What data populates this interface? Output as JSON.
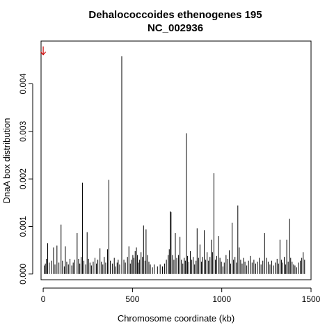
{
  "chart_data": {
    "type": "bar",
    "title": "Dehalococcoides ethenogenes 195",
    "subtitle": "NC_002936",
    "xlabel": "Chromosome coordinate (kb)",
    "ylabel": "DnaA box distribution",
    "xlim": [
      -12,
      1500
    ],
    "ylim": [
      -0.00012,
      0.0049
    ],
    "xticks": [
      0,
      500,
      1000,
      1500
    ],
    "xtick_labels": [
      "0",
      "500",
      "1000",
      "1500"
    ],
    "yticks": [
      0,
      0.001,
      0.002,
      0.003,
      0.004
    ],
    "ytick_labels": [
      "0.000",
      "0.001",
      "0.002",
      "0.003",
      "0.004"
    ],
    "marker": {
      "kind": "arrow",
      "x": 0,
      "y": 0.0047,
      "color": "#cc0000"
    },
    "bar_color": "#000000",
    "bars": [
      [
        6,
        0.00018
      ],
      [
        12,
        0.00022
      ],
      [
        18,
        0.00032
      ],
      [
        25,
        0.00065
      ],
      [
        34,
        0.00024
      ],
      [
        48,
        0.00028
      ],
      [
        58,
        0.00056
      ],
      [
        66,
        0.0002
      ],
      [
        77,
        0.0006
      ],
      [
        88,
        0.00024
      ],
      [
        100,
        0.00104
      ],
      [
        108,
        0.00028
      ],
      [
        118,
        0.00016
      ],
      [
        124,
        0.00058
      ],
      [
        132,
        0.00026
      ],
      [
        141,
        0.0002
      ],
      [
        150,
        0.00032
      ],
      [
        160,
        0.00018
      ],
      [
        168,
        0.00024
      ],
      [
        176,
        0.0003
      ],
      [
        190,
        0.00086
      ],
      [
        198,
        0.00032
      ],
      [
        205,
        0.00022
      ],
      [
        213,
        0.00036
      ],
      [
        220,
        0.00192
      ],
      [
        228,
        0.00028
      ],
      [
        238,
        0.0002
      ],
      [
        246,
        0.00088
      ],
      [
        254,
        0.00032
      ],
      [
        262,
        0.00024
      ],
      [
        270,
        0.00018
      ],
      [
        280,
        0.00026
      ],
      [
        290,
        0.00034
      ],
      [
        298,
        0.00022
      ],
      [
        306,
        0.0003
      ],
      [
        318,
        0.00054
      ],
      [
        326,
        0.00026
      ],
      [
        334,
        0.0002
      ],
      [
        342,
        0.00036
      ],
      [
        350,
        0.00024
      ],
      [
        360,
        0.00052
      ],
      [
        368,
        0.00198
      ],
      [
        376,
        0.00028
      ],
      [
        388,
        0.00022
      ],
      [
        398,
        0.00034
      ],
      [
        406,
        0.00016
      ],
      [
        414,
        0.00024
      ],
      [
        420,
        0.0003
      ],
      [
        428,
        0.0002
      ],
      [
        440,
        0.00458
      ],
      [
        452,
        0.0003
      ],
      [
        460,
        0.00024
      ],
      [
        472,
        0.00036
      ],
      [
        480,
        0.00058
      ],
      [
        488,
        0.00022
      ],
      [
        494,
        0.0003
      ],
      [
        502,
        0.0004
      ],
      [
        508,
        0.00034
      ],
      [
        515,
        0.00048
      ],
      [
        522,
        0.00056
      ],
      [
        528,
        0.0004
      ],
      [
        534,
        0.00024
      ],
      [
        540,
        0.0003
      ],
      [
        548,
        0.00046
      ],
      [
        556,
        0.00036
      ],
      [
        562,
        0.00102
      ],
      [
        570,
        0.00028
      ],
      [
        576,
        0.00094
      ],
      [
        584,
        0.0004
      ],
      [
        592,
        0.00026
      ],
      [
        600,
        0.0002
      ],
      [
        612,
        0.00014
      ],
      [
        622,
        0.0002
      ],
      [
        640,
        0.00016
      ],
      [
        655,
        0.0002
      ],
      [
        668,
        0.00016
      ],
      [
        680,
        0.00022
      ],
      [
        690,
        0.0003
      ],
      [
        700,
        0.0004
      ],
      [
        706,
        0.00052
      ],
      [
        712,
        0.00132
      ],
      [
        716,
        0.0013
      ],
      [
        724,
        0.0004
      ],
      [
        732,
        0.0003
      ],
      [
        740,
        0.00086
      ],
      [
        748,
        0.00034
      ],
      [
        758,
        0.0004
      ],
      [
        766,
        0.00078
      ],
      [
        774,
        0.0003
      ],
      [
        782,
        0.00022
      ],
      [
        790,
        0.00034
      ],
      [
        796,
        0.00028
      ],
      [
        802,
        0.00296
      ],
      [
        808,
        0.00038
      ],
      [
        816,
        0.00026
      ],
      [
        824,
        0.00048
      ],
      [
        832,
        0.0003
      ],
      [
        840,
        0.00036
      ],
      [
        848,
        0.0002
      ],
      [
        856,
        0.00028
      ],
      [
        862,
        0.00096
      ],
      [
        870,
        0.00034
      ],
      [
        878,
        0.00062
      ],
      [
        886,
        0.00026
      ],
      [
        894,
        0.00036
      ],
      [
        902,
        0.00092
      ],
      [
        910,
        0.0003
      ],
      [
        918,
        0.00046
      ],
      [
        926,
        0.00028
      ],
      [
        934,
        0.00036
      ],
      [
        942,
        0.00072
      ],
      [
        948,
        0.00046
      ],
      [
        956,
        0.00212
      ],
      [
        964,
        0.0003
      ],
      [
        972,
        0.00038
      ],
      [
        982,
        0.0008
      ],
      [
        990,
        0.00034
      ],
      [
        998,
        0.00026
      ],
      [
        1006,
        0.00016
      ],
      [
        1014,
        0.00024
      ],
      [
        1024,
        0.0004
      ],
      [
        1034,
        0.00032
      ],
      [
        1042,
        0.0005
      ],
      [
        1050,
        0.00022
      ],
      [
        1058,
        0.00108
      ],
      [
        1066,
        0.0003
      ],
      [
        1074,
        0.00036
      ],
      [
        1082,
        0.00024
      ],
      [
        1090,
        0.00144
      ],
      [
        1098,
        0.00056
      ],
      [
        1106,
        0.0003
      ],
      [
        1114,
        0.00022
      ],
      [
        1122,
        0.00034
      ],
      [
        1130,
        0.00026
      ],
      [
        1140,
        0.00018
      ],
      [
        1150,
        0.00028
      ],
      [
        1160,
        0.00038
      ],
      [
        1170,
        0.00024
      ],
      [
        1180,
        0.0003
      ],
      [
        1190,
        0.00022
      ],
      [
        1200,
        0.00026
      ],
      [
        1210,
        0.00034
      ],
      [
        1220,
        0.0002
      ],
      [
        1230,
        0.00028
      ],
      [
        1240,
        0.00086
      ],
      [
        1250,
        0.00034
      ],
      [
        1260,
        0.00026
      ],
      [
        1270,
        0.0002
      ],
      [
        1280,
        0.00028
      ],
      [
        1290,
        0.00018
      ],
      [
        1300,
        0.00024
      ],
      [
        1310,
        0.00032
      ],
      [
        1318,
        0.00022
      ],
      [
        1326,
        0.00072
      ],
      [
        1334,
        0.0003
      ],
      [
        1342,
        0.00024
      ],
      [
        1350,
        0.00036
      ],
      [
        1358,
        0.0002
      ],
      [
        1364,
        0.00072
      ],
      [
        1372,
        0.00026
      ],
      [
        1380,
        0.00116
      ],
      [
        1386,
        0.00034
      ],
      [
        1394,
        0.00026
      ],
      [
        1402,
        0.0002
      ],
      [
        1410,
        0.00018
      ],
      [
        1420,
        0.00014
      ],
      [
        1430,
        0.00024
      ],
      [
        1440,
        0.00028
      ],
      [
        1448,
        0.00034
      ],
      [
        1456,
        0.00046
      ],
      [
        1464,
        0.0003
      ]
    ]
  }
}
